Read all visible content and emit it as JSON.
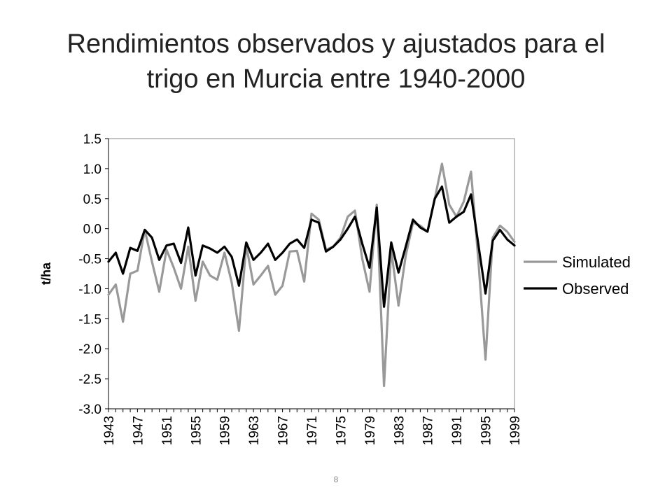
{
  "slide": {
    "title_line1": "Rendimientos observados y ajustados para el",
    "title_line2": "trigo en Murcia entre 1940-2000",
    "page_number": "8"
  },
  "chart_data": {
    "type": "line",
    "title": "Rendimientos observados y ajustados para el trigo en Murcia entre 1940-2000",
    "xlabel": "",
    "ylabel": "t/ha",
    "ylim": [
      -3.0,
      1.5
    ],
    "ytick_labels": [
      "1.5",
      "1.0",
      "0.5",
      "0.0",
      "-0.5",
      "-1.0",
      "-1.5",
      "-2.0",
      "-2.5",
      "-3.0"
    ],
    "yticks": [
      1.5,
      1.0,
      0.5,
      0.0,
      -0.5,
      -1.0,
      -1.5,
      -2.0,
      -2.5,
      -3.0
    ],
    "xtick_labels": [
      "1943",
      "1947",
      "1951",
      "1955",
      "1959",
      "1963",
      "1967",
      "1971",
      "1975",
      "1979",
      "1983",
      "1987",
      "1991",
      "1995",
      "1999"
    ],
    "x": [
      1943,
      1944,
      1945,
      1946,
      1947,
      1948,
      1949,
      1950,
      1951,
      1952,
      1953,
      1954,
      1955,
      1956,
      1957,
      1958,
      1959,
      1960,
      1961,
      1962,
      1963,
      1964,
      1965,
      1966,
      1967,
      1968,
      1969,
      1970,
      1971,
      1972,
      1973,
      1974,
      1975,
      1976,
      1977,
      1978,
      1979,
      1980,
      1981,
      1982,
      1983,
      1984,
      1985,
      1986,
      1987,
      1988,
      1989,
      1990,
      1991,
      1992,
      1993,
      1994,
      1995,
      1996,
      1997,
      1998,
      1999
    ],
    "grid": false,
    "legend": "right",
    "series": [
      {
        "name": "Simulated",
        "color": "#999999",
        "values": [
          -1.1,
          -0.93,
          -1.55,
          -0.75,
          -0.7,
          -0.02,
          -0.55,
          -1.05,
          -0.35,
          -0.65,
          -1.0,
          -0.3,
          -1.2,
          -0.55,
          -0.78,
          -0.85,
          -0.4,
          -0.9,
          -1.7,
          -0.28,
          -0.93,
          -0.78,
          -0.62,
          -1.1,
          -0.95,
          -0.38,
          -0.37,
          -0.88,
          0.25,
          0.15,
          -0.35,
          -0.3,
          -0.15,
          0.2,
          0.3,
          -0.5,
          -1.05,
          0.4,
          -2.62,
          -0.35,
          -1.28,
          -0.45,
          0.1,
          0.05,
          -0.05,
          0.5,
          1.08,
          0.4,
          0.2,
          0.45,
          0.95,
          -0.5,
          -2.18,
          -0.15,
          0.05,
          -0.05,
          -0.22
        ]
      },
      {
        "name": "Observed",
        "color": "#000000",
        "values": [
          -0.55,
          -0.4,
          -0.75,
          -0.32,
          -0.37,
          -0.02,
          -0.15,
          -0.52,
          -0.28,
          -0.25,
          -0.57,
          0.02,
          -0.78,
          -0.28,
          -0.33,
          -0.4,
          -0.3,
          -0.47,
          -0.95,
          -0.23,
          -0.52,
          -0.4,
          -0.25,
          -0.52,
          -0.4,
          -0.25,
          -0.18,
          -0.32,
          0.15,
          0.1,
          -0.38,
          -0.3,
          -0.18,
          0.0,
          0.2,
          -0.25,
          -0.65,
          0.35,
          -1.3,
          -0.23,
          -0.73,
          -0.3,
          0.15,
          0.02,
          -0.05,
          0.5,
          0.7,
          0.1,
          0.2,
          0.28,
          0.57,
          -0.25,
          -1.08,
          -0.2,
          -0.02,
          -0.18,
          -0.28
        ]
      }
    ]
  }
}
